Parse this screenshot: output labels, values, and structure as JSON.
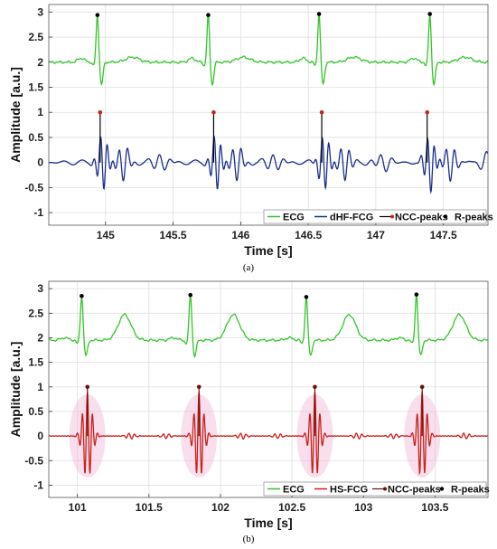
{
  "captions": [
    "(a)",
    "(b)"
  ],
  "chart_data": [
    {
      "type": "line",
      "panel": "(a)",
      "xlabel": "Time [s]",
      "ylabel": "Amplitude [a.u.]",
      "xlim": [
        144.58,
        147.83
      ],
      "ylim": [
        -1.25,
        3.15
      ],
      "x_ticks": [
        145,
        145.5,
        146,
        146.5,
        147,
        147.5
      ],
      "x_tick_labels": [
        "145",
        "145.5",
        "146",
        "146.5",
        "147",
        "147.5"
      ],
      "y_ticks": [
        -1,
        -0.5,
        0,
        0.5,
        1,
        1.5,
        2,
        2.5,
        3
      ],
      "y_tick_labels": [
        "-1",
        "-0.5",
        "0",
        "0.5",
        "1",
        "1.5",
        "2",
        "2.5",
        "3"
      ],
      "grid": true,
      "legend_position": "bottom-right",
      "legend": [
        "ECG",
        "dHF-FCG",
        "NCC-peaks",
        "R-peaks"
      ],
      "colors": {
        "ECG": "#33c52a",
        "signal": "#1b2f8a",
        "NCC-peaks": "#c0281a",
        "R-peaks": "#000000"
      },
      "ecg_baseline": 2.0,
      "r_peaks": {
        "x": [
          144.94,
          145.76,
          146.58,
          147.4
        ],
        "y": [
          2.94,
          2.94,
          2.96,
          2.96
        ]
      },
      "ncc_peaks": {
        "x": [
          144.96,
          145.8,
          146.6,
          147.38
        ],
        "y": [
          1.0,
          1.0,
          1.0,
          1.0
        ]
      },
      "series": [
        {
          "name": "ECG",
          "description_values": {
            "baseline": 2.0,
            "r_peak": 2.95,
            "s_trough": 1.55
          }
        },
        {
          "name": "dHF-FCG",
          "range": [
            -0.9,
            0.6
          ]
        }
      ]
    },
    {
      "type": "line",
      "panel": "(b)",
      "xlabel": "Time [s]",
      "ylabel": "Amplitude [a.u.]",
      "xlim": [
        100.8,
        103.87
      ],
      "ylim": [
        -1.25,
        3.15
      ],
      "x_ticks": [
        101,
        101.5,
        102,
        102.5,
        103,
        103.5
      ],
      "x_tick_labels": [
        "101",
        "101.5",
        "102",
        "102.5",
        "103",
        "103.5"
      ],
      "y_ticks": [
        -1,
        -0.5,
        0,
        0.5,
        1,
        1.5,
        2,
        2.5,
        3
      ],
      "y_tick_labels": [
        "-1",
        "-0.5",
        "0",
        "0.5",
        "1",
        "1.5",
        "2",
        "2.5",
        "3"
      ],
      "grid": true,
      "legend_position": "bottom-right",
      "legend": [
        "ECG",
        "HS-FCG",
        "NCC-peaks",
        "R-peaks"
      ],
      "colors": {
        "ECG": "#33c52a",
        "signal": "#c9201a",
        "NCC-peaks": "#6b0f0f",
        "R-peaks": "#000000",
        "halo": "#f2b8d8"
      },
      "ecg_baseline": 1.95,
      "r_peaks": {
        "x": [
          101.03,
          101.79,
          102.6,
          103.37
        ],
        "y": [
          2.85,
          2.87,
          2.83,
          2.88
        ]
      },
      "ncc_peaks": {
        "x": [
          101.07,
          101.85,
          102.66,
          103.41
        ],
        "y": [
          1.0,
          1.0,
          1.0,
          1.0
        ]
      },
      "series": [
        {
          "name": "ECG",
          "description_values": {
            "baseline": 1.95,
            "r_peak": 2.86,
            "s_trough": 1.65
          }
        },
        {
          "name": "HS-FCG",
          "range": [
            -0.8,
            1.0
          ]
        }
      ]
    }
  ]
}
